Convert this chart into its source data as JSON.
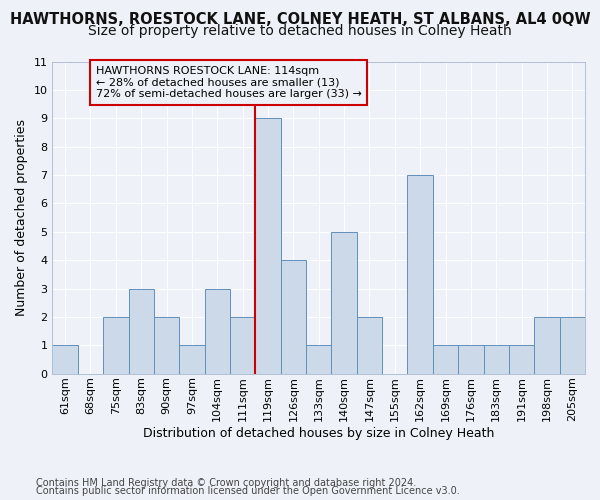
{
  "title": "HAWTHORNS, ROESTOCK LANE, COLNEY HEATH, ST ALBANS, AL4 0QW",
  "subtitle": "Size of property relative to detached houses in Colney Heath",
  "xlabel": "Distribution of detached houses by size in Colney Heath",
  "ylabel": "Number of detached properties",
  "categories": [
    "61sqm",
    "68sqm",
    "75sqm",
    "83sqm",
    "90sqm",
    "97sqm",
    "104sqm",
    "111sqm",
    "119sqm",
    "126sqm",
    "133sqm",
    "140sqm",
    "147sqm",
    "155sqm",
    "162sqm",
    "169sqm",
    "176sqm",
    "183sqm",
    "191sqm",
    "198sqm",
    "205sqm"
  ],
  "values": [
    1,
    0,
    2,
    3,
    2,
    1,
    3,
    2,
    9,
    4,
    1,
    5,
    2,
    0,
    7,
    1,
    1,
    1,
    1,
    2,
    2
  ],
  "bar_color": "#ccd9e8",
  "bar_edge_color": "#6090bb",
  "vline_color": "#cc0000",
  "vline_x_index": 7,
  "annotation_title": "HAWTHORNS ROESTOCK LANE: 114sqm",
  "annotation_line1": "← 28% of detached houses are smaller (13)",
  "annotation_line2": "72% of semi-detached houses are larger (33) →",
  "annotation_box_color": "#cc0000",
  "ylim": [
    0,
    11
  ],
  "yticks": [
    0,
    1,
    2,
    3,
    4,
    5,
    6,
    7,
    8,
    9,
    10,
    11
  ],
  "footer1": "Contains HM Land Registry data © Crown copyright and database right 2024.",
  "footer2": "Contains public sector information licensed under the Open Government Licence v3.0.",
  "background_color": "#eef2f8",
  "grid_color": "#ffffff",
  "title_fontsize": 10.5,
  "subtitle_fontsize": 10,
  "axis_label_fontsize": 9,
  "tick_fontsize": 8,
  "annotation_fontsize": 8,
  "footer_fontsize": 7
}
